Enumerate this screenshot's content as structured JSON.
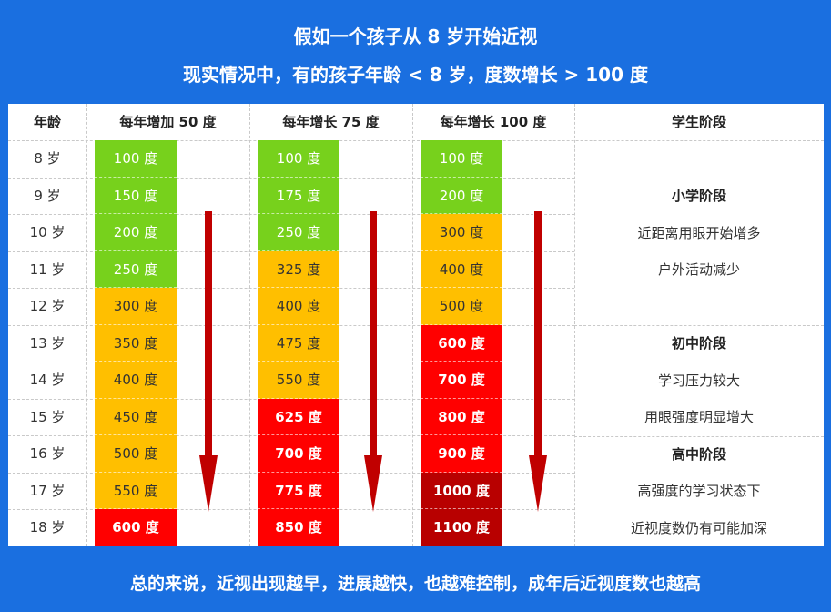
{
  "title_line1": "假如一个孩子从 8 岁开始近视",
  "title_line2": "现实情况中，有的孩子年龄 < 8 岁，度数增长 > 100 度",
  "footer": "总的来说，近视出现越早，进展越快，也越难控制，成年后近视度数也越高",
  "headers": [
    "年龄",
    "每年增加 50 度",
    "每年增长 75 度",
    "每年增长 100 度",
    "学生阶段"
  ],
  "ages": [
    "8 岁",
    "9 岁",
    "10 岁",
    "11 岁",
    "12 岁",
    "13 岁",
    "14 岁",
    "15 岁",
    "16 岁",
    "17 岁",
    "18 岁"
  ],
  "colors": {
    "background": "#1a6fe0",
    "green": "#77d11c",
    "orange": "#ffbf00",
    "red": "#ff0000",
    "dark_red": "#b80000",
    "arrow": "#c00000"
  },
  "columns": [
    {
      "values": [
        "100 度",
        "150 度",
        "200 度",
        "250 度",
        "300 度",
        "350 度",
        "400 度",
        "450 度",
        "500 度",
        "550 度",
        "600 度"
      ],
      "levels": [
        "green",
        "green",
        "green",
        "green",
        "orange",
        "orange",
        "orange",
        "orange",
        "orange",
        "orange",
        "red"
      ]
    },
    {
      "values": [
        "100 度",
        "175 度",
        "250 度",
        "325 度",
        "400 度",
        "475 度",
        "550 度",
        "625 度",
        "700 度",
        "775 度",
        "850 度"
      ],
      "levels": [
        "green",
        "green",
        "green",
        "orange",
        "orange",
        "orange",
        "orange",
        "red",
        "red",
        "red",
        "red"
      ]
    },
    {
      "values": [
        "100 度",
        "200 度",
        "300 度",
        "400 度",
        "500 度",
        "600 度",
        "700 度",
        "800 度",
        "900 度",
        "1000 度",
        "1100 度"
      ],
      "levels": [
        "green",
        "green",
        "orange",
        "orange",
        "orange",
        "red",
        "red",
        "red",
        "red",
        "dark",
        "dark"
      ]
    }
  ],
  "stages": {
    "primary": {
      "title": "小学阶段",
      "lines": [
        "近距离用眼开始增多",
        "户外活动减少"
      ]
    },
    "middle": {
      "title": "初中阶段",
      "lines": [
        "学习压力较大",
        "用眼强度明显增大"
      ]
    },
    "high": {
      "title": "高中阶段",
      "lines": [
        "高强度的学习状态下",
        "近视度数仍有可能加深"
      ]
    }
  },
  "icons": [
    "down-arrow-icon"
  ]
}
